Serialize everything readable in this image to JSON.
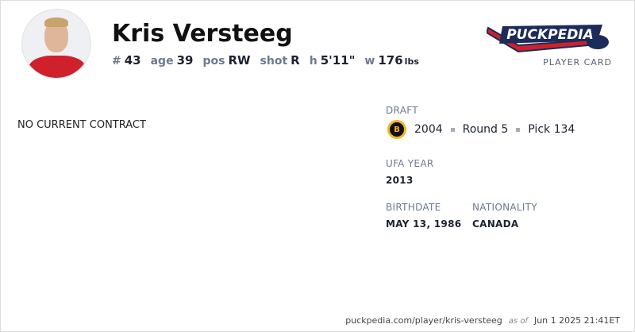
{
  "player": {
    "name": "Kris Versteeg",
    "number": "43",
    "age": "39",
    "pos": "RW",
    "shot": "R",
    "height": "5'11\"",
    "weight": "176",
    "weight_unit": "lbs"
  },
  "labels": {
    "number": "#",
    "age": "age",
    "pos": "pos",
    "shot": "shot",
    "height": "h",
    "weight": "w"
  },
  "brand": {
    "logo_text": "PuckPedia",
    "subtitle": "PLAYER CARD"
  },
  "contract": {
    "status": "NO CURRENT CONTRACT"
  },
  "draft": {
    "label": "DRAFT",
    "team_icon": "boston-bruins-logo",
    "year": "2004",
    "round": "Round 5",
    "pick": "Pick 134"
  },
  "ufa": {
    "label": "UFA YEAR",
    "value": "2013"
  },
  "birth": {
    "label": "BIRTHDATE",
    "value": "MAY 13, 1986"
  },
  "nationality": {
    "label": "NATIONALITY",
    "value": "CANADA"
  },
  "footer": {
    "url": "puckpedia.com/player/kris-versteeg",
    "as_of": "as of",
    "timestamp": "Jun 1 2025 21:41ET"
  },
  "colors": {
    "label": "#6b7a90",
    "brand_navy": "#1c2b5a",
    "brand_red": "#d0202c"
  }
}
